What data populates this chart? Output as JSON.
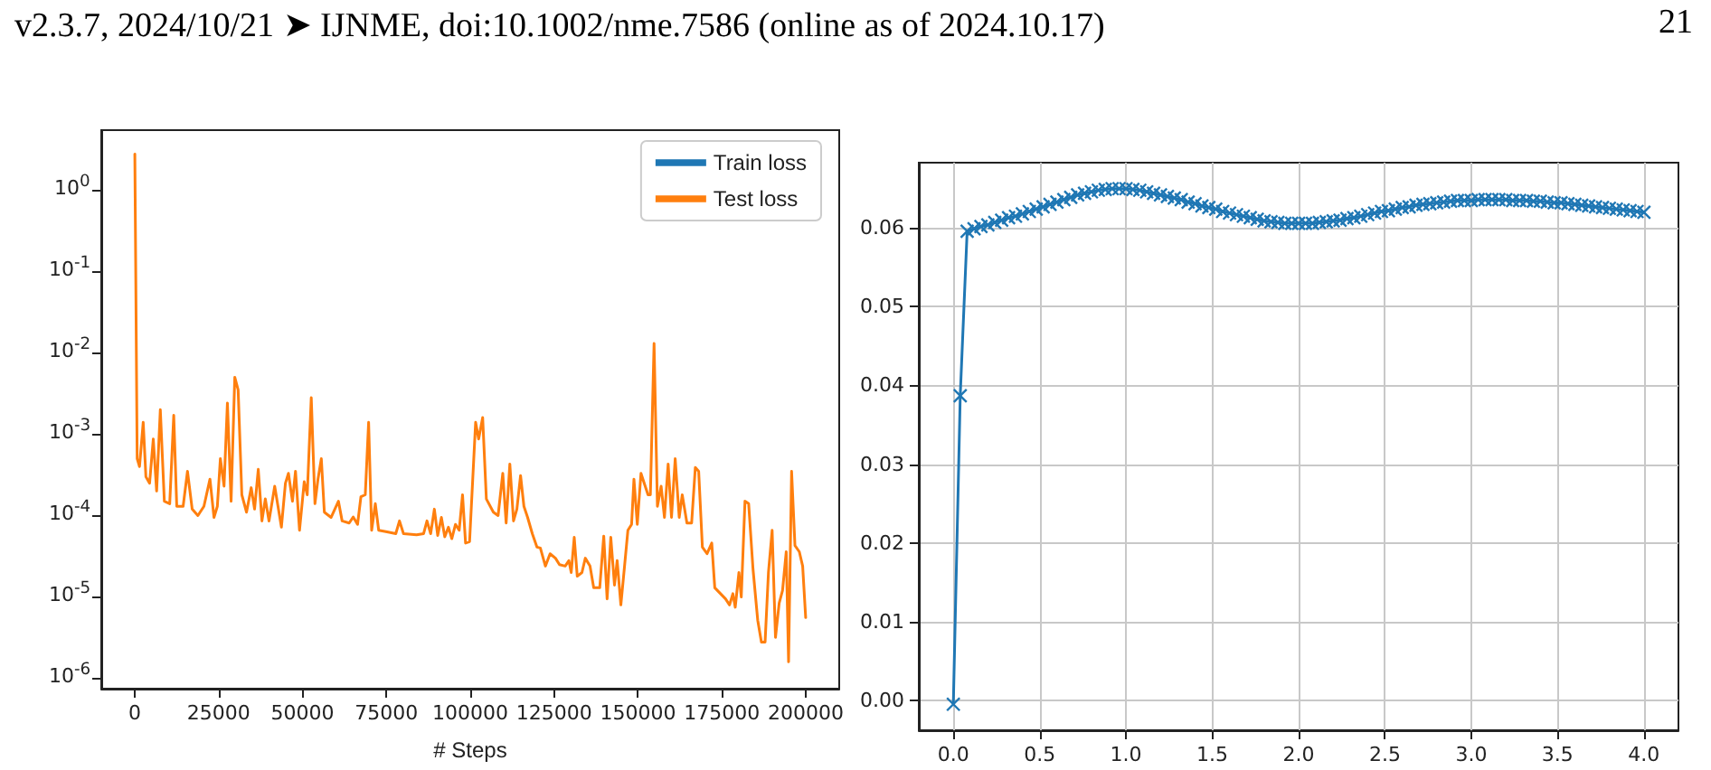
{
  "chart_data": [
    {
      "type": "line",
      "xlabel": "# Steps",
      "log": true,
      "legend": "top right",
      "marker": "none",
      "annotations": [
        "v2.3.7, 2024/10/21 ➤ IJNME, doi:10.1002/nme.7586 (online as of 2024.10.17)",
        "21"
      ],
      "xlim": [
        -10000,
        210000
      ],
      "ylim": [
        7.5e-07,
        5.4
      ],
      "xticks": [
        0,
        25000,
        50000,
        75000,
        100000,
        125000,
        150000,
        175000,
        200000
      ],
      "yticks": [
        {
          "value": 1e-06,
          "label": "10$^{-6}$"
        },
        {
          "value": 1e-05,
          "label": "10$^{-5}$"
        },
        {
          "value": 0.0001,
          "label": "10$^{-4}$"
        },
        {
          "value": 0.001,
          "label": "10$^{-3}$"
        },
        {
          "value": 0.01,
          "label": "10$^{-2}$"
        },
        {
          "value": 0.1,
          "label": "10$^{-1}$"
        },
        {
          "value": 1,
          "label": "10$^{0}$"
        }
      ],
      "x": [
        0,
        700,
        1400,
        2500,
        3300,
        4400,
        5500,
        6500,
        7600,
        8800,
        10400,
        11600,
        12500,
        14400,
        15700,
        17100,
        18800,
        20600,
        22400,
        23600,
        24600,
        25500,
        26600,
        27600,
        28700,
        29800,
        30800,
        31900,
        33300,
        34700,
        35700,
        36800,
        37900,
        38900,
        40000,
        41700,
        43700,
        44900,
        45800,
        47000,
        47900,
        49100,
        50500,
        51400,
        52600,
        53700,
        54600,
        55600,
        56500,
        58500,
        60700,
        61800,
        63900,
        65100,
        66400,
        67400,
        68700,
        69700,
        70600,
        71700,
        72700,
        75200,
        77800,
        78900,
        80100,
        84000,
        86100,
        87100,
        88200,
        89300,
        90300,
        91400,
        92400,
        93500,
        94500,
        95600,
        96700,
        97700,
        98600,
        99800,
        101600,
        102500,
        103700,
        104800,
        106900,
        108300,
        109700,
        110700,
        111800,
        112900,
        113900,
        115000,
        116000,
        117100,
        118500,
        119900,
        120900,
        122400,
        123800,
        125400,
        126600,
        128300,
        129400,
        130100,
        131000,
        131900,
        133300,
        134300,
        135700,
        136800,
        138600,
        139800,
        140800,
        141900,
        143000,
        143800,
        144900,
        146000,
        147000,
        148100,
        148800,
        149800,
        150900,
        153000,
        153700,
        154800,
        155800,
        156900,
        157900,
        159000,
        160000,
        161100,
        162300,
        163200,
        164600,
        166000,
        167100,
        168100,
        169200,
        170600,
        172000,
        172900,
        174600,
        176100,
        177300,
        178300,
        179000,
        180100,
        180800,
        181900,
        183000,
        184300,
        185700,
        186800,
        187900,
        188900,
        190000,
        191000,
        192100,
        193100,
        194200,
        194900,
        195800,
        196800,
        198100,
        199100,
        200000
      ],
      "series": [
        {
          "name": "Train loss",
          "color": "#1f77b4",
          "values": [
            null,
            null,
            null,
            null,
            null,
            null,
            null,
            null,
            null,
            null,
            null,
            null,
            null,
            null,
            null,
            null,
            null,
            null,
            null,
            null,
            null,
            null,
            null,
            null,
            null,
            null,
            null,
            null,
            null,
            null,
            null,
            null,
            null,
            null,
            null,
            null,
            null,
            null,
            null,
            null,
            null,
            null,
            null,
            null,
            null,
            null,
            null,
            null,
            null,
            null,
            null,
            null,
            null,
            null,
            null,
            null,
            null,
            null,
            null,
            null,
            null,
            null,
            null,
            null,
            null,
            null,
            null,
            null,
            null,
            null,
            null,
            null,
            null,
            null,
            null,
            null,
            null,
            null,
            null,
            null,
            null,
            null,
            null,
            null,
            null,
            null,
            null,
            null,
            null,
            null,
            null,
            null,
            null,
            null,
            null,
            null,
            null,
            null,
            null,
            null,
            null,
            null,
            null,
            null,
            null,
            null,
            null,
            null,
            null,
            null,
            null,
            null,
            null,
            null,
            null,
            null,
            null,
            null,
            null,
            null,
            null,
            null,
            null,
            null,
            null,
            null,
            null,
            null,
            null,
            null,
            null,
            null,
            null,
            null,
            null,
            null,
            null,
            null,
            null,
            null,
            null,
            null,
            null,
            null,
            null,
            null,
            null,
            null,
            null,
            null,
            null,
            null,
            null,
            null,
            null,
            null,
            null,
            null,
            null,
            null,
            null,
            null,
            null,
            null,
            null,
            null,
            null
          ]
        },
        {
          "name": "Test loss",
          "color": "#ff7f0e",
          "values": [
            2.75,
            0.0005,
            0.0004,
            0.0014,
            0.0003,
            0.00025,
            0.00087,
            0.0002,
            0.002,
            0.00015,
            0.00014,
            0.0017,
            0.00013,
            0.00013,
            0.00035,
            0.00012,
            0.0001,
            0.00013,
            0.00028,
            9.5e-05,
            0.00013,
            0.0005,
            0.00023,
            0.0024,
            0.00015,
            0.005,
            0.0035,
            0.00018,
            0.00011,
            0.00022,
            0.00012,
            0.00037,
            8.6e-05,
            0.00016,
            8.6e-05,
            0.00023,
            7.2e-05,
            0.00025,
            0.00033,
            0.00015,
            0.00035,
            6.6e-05,
            0.00026,
            0.00018,
            0.0028,
            0.00014,
            0.00028,
            0.0005,
            0.00011,
            9.5e-05,
            0.00015,
            8.6e-05,
            8.1e-05,
            9.6e-05,
            7.8e-05,
            0.00017,
            0.00018,
            0.0014,
            6.6e-05,
            0.00014,
            6.6e-05,
            6.3e-05,
            6e-05,
            8.6e-05,
            6e-05,
            5.8e-05,
            6e-05,
            8.6e-05,
            6e-05,
            0.00012,
            5.7e-05,
            9.5e-05,
            5.5e-05,
            7.2e-05,
            5.2e-05,
            7.8e-05,
            6.6e-05,
            0.00018,
            4.6e-05,
            4.8e-05,
            0.0014,
            0.00087,
            0.0016,
            0.00016,
            0.00011,
            0.0001,
            0.00033,
            8.1e-05,
            0.00043,
            8.6e-05,
            0.00012,
            0.00031,
            0.00013,
            9.5e-05,
            6e-05,
            4.1e-05,
            4e-05,
            2.4e-05,
            3.4e-05,
            3e-05,
            2.5e-05,
            2.4e-05,
            2.8e-05,
            2e-05,
            5.4e-05,
            1.8e-05,
            2e-05,
            3e-05,
            2.4e-05,
            1.3e-05,
            1.3e-05,
            5.6e-05,
            9.5e-06,
            5.4e-05,
            1.4e-05,
            2.8e-05,
            8e-06,
            2.4e-05,
            6.6e-05,
            7.8e-05,
            0.00028,
            7.8e-05,
            0.00033,
            0.00018,
            0.00018,
            0.013,
            0.00013,
            0.00023,
            9.5e-05,
            0.00043,
            9.5e-05,
            0.0005,
            9.5e-05,
            0.00018,
            8.1e-05,
            8.1e-05,
            0.00039,
            0.00035,
            4.1e-05,
            3.4e-05,
            4.6e-05,
            1.3e-05,
            1.1e-05,
            9.5e-06,
            8e-06,
            1.1e-05,
            7.5e-06,
            2e-05,
            1e-05,
            0.00015,
            0.00014,
            2.2e-05,
            5.2e-06,
            2.8e-06,
            2.8e-06,
            2e-05,
            6.6e-05,
            3.2e-06,
            8.4e-06,
            1.2e-05,
            3.6e-05,
            1.6e-06,
            0.00035,
            4.3e-05,
            3.6e-05,
            2.4e-05,
            5.6e-06
          ]
        }
      ]
    },
    {
      "type": "line",
      "grid": true,
      "marker": "cross",
      "color": "#1f77b4",
      "xlim": [
        -0.2,
        4.2
      ],
      "ylim": [
        -0.0038,
        0.0683
      ],
      "xticks": [
        {
          "value": 0,
          "label": "0.0"
        },
        {
          "value": 0.5,
          "label": "0.5"
        },
        {
          "value": 1,
          "label": "1.0"
        },
        {
          "value": 1.5,
          "label": "1.5"
        },
        {
          "value": 2,
          "label": "2.0"
        },
        {
          "value": 2.5,
          "label": "2.5"
        },
        {
          "value": 3,
          "label": "3.0"
        },
        {
          "value": 3.5,
          "label": "3.5"
        },
        {
          "value": 4,
          "label": "4.0"
        }
      ],
      "yticks": [
        {
          "value": 0,
          "label": "0.00"
        },
        {
          "value": 0.01,
          "label": "0.01"
        },
        {
          "value": 0.02,
          "label": "0.02"
        },
        {
          "value": 0.03,
          "label": "0.03"
        },
        {
          "value": 0.04,
          "label": "0.04"
        },
        {
          "value": 0.05,
          "label": "0.05"
        },
        {
          "value": 0.06,
          "label": "0.06"
        }
      ],
      "x": [
        0,
        0.04,
        0.08,
        0.12,
        0.16,
        0.2,
        0.24,
        0.28,
        0.32,
        0.36,
        0.4,
        0.44,
        0.48,
        0.52,
        0.56,
        0.6,
        0.64,
        0.68,
        0.72,
        0.76,
        0.8,
        0.84,
        0.88,
        0.92,
        0.96,
        1,
        1.04,
        1.08,
        1.12,
        1.16,
        1.2,
        1.24,
        1.28,
        1.32,
        1.36,
        1.4,
        1.44,
        1.48,
        1.52,
        1.56,
        1.6,
        1.64,
        1.68,
        1.72,
        1.76,
        1.8,
        1.84,
        1.88,
        1.92,
        1.96,
        2,
        2.04,
        2.08,
        2.12,
        2.16,
        2.2,
        2.24,
        2.28,
        2.32,
        2.36,
        2.4,
        2.44,
        2.48,
        2.52,
        2.56,
        2.6,
        2.64,
        2.68,
        2.72,
        2.76,
        2.8,
        2.84,
        2.88,
        2.92,
        2.96,
        3,
        3.04,
        3.08,
        3.12,
        3.16,
        3.2,
        3.24,
        3.28,
        3.32,
        3.36,
        3.4,
        3.44,
        3.48,
        3.52,
        3.56,
        3.6,
        3.64,
        3.68,
        3.72,
        3.76,
        3.8,
        3.84,
        3.88,
        3.92,
        3.96,
        4
      ],
      "values": [
        -0.0005,
        0.0387,
        0.0596,
        0.0599,
        0.0602,
        0.0604,
        0.0607,
        0.061,
        0.0613,
        0.0615,
        0.0618,
        0.0621,
        0.0624,
        0.0627,
        0.063,
        0.0633,
        0.0636,
        0.0639,
        0.0642,
        0.0644,
        0.0646,
        0.0648,
        0.0649,
        0.065,
        0.065,
        0.065,
        0.0649,
        0.0648,
        0.0646,
        0.0644,
        0.0642,
        0.064,
        0.0638,
        0.0636,
        0.0633,
        0.0631,
        0.0628,
        0.0626,
        0.0624,
        0.0621,
        0.0619,
        0.0617,
        0.0615,
        0.0613,
        0.0611,
        0.0609,
        0.0608,
        0.0607,
        0.0606,
        0.0606,
        0.0606,
        0.0606,
        0.0606,
        0.0607,
        0.0608,
        0.0609,
        0.061,
        0.0612,
        0.0613,
        0.0615,
        0.0617,
        0.0619,
        0.0621,
        0.0622,
        0.0624,
        0.0626,
        0.0627,
        0.0629,
        0.063,
        0.0631,
        0.0632,
        0.0633,
        0.0634,
        0.0635,
        0.0635,
        0.0635,
        0.0636,
        0.0636,
        0.0636,
        0.0636,
        0.0636,
        0.0635,
        0.0635,
        0.0635,
        0.0634,
        0.0634,
        0.0633,
        0.0632,
        0.0632,
        0.0631,
        0.063,
        0.0629,
        0.0628,
        0.0627,
        0.0626,
        0.0625,
        0.0624,
        0.0623,
        0.0622,
        0.0621,
        0.062
      ]
    }
  ]
}
